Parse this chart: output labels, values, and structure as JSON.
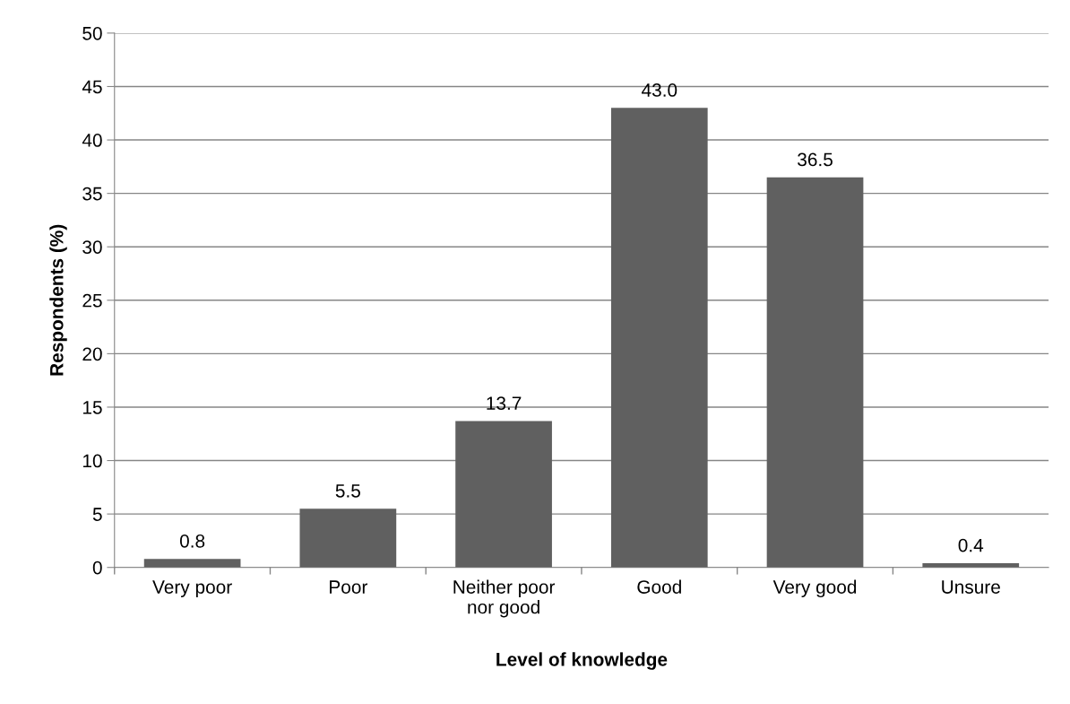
{
  "chart_data": {
    "type": "bar",
    "xlabel": "Level of knowledge",
    "ylabel": "Respondents (%)",
    "categories": [
      "Very poor",
      "Poor",
      "Neither poor nor good",
      "Good",
      "Very good",
      "Unsure"
    ],
    "values": [
      0.8,
      5.5,
      13.7,
      43.0,
      36.5,
      0.4
    ],
    "value_labels": [
      "0.8",
      "5.5",
      "13.7",
      "43.0",
      "36.5",
      "0.4"
    ],
    "color": "#606060",
    "ylim": [
      0,
      50
    ],
    "yticks": [
      0,
      5,
      10,
      15,
      20,
      25,
      30,
      35,
      40,
      45,
      50
    ],
    "grid": "y",
    "legend": false
  }
}
